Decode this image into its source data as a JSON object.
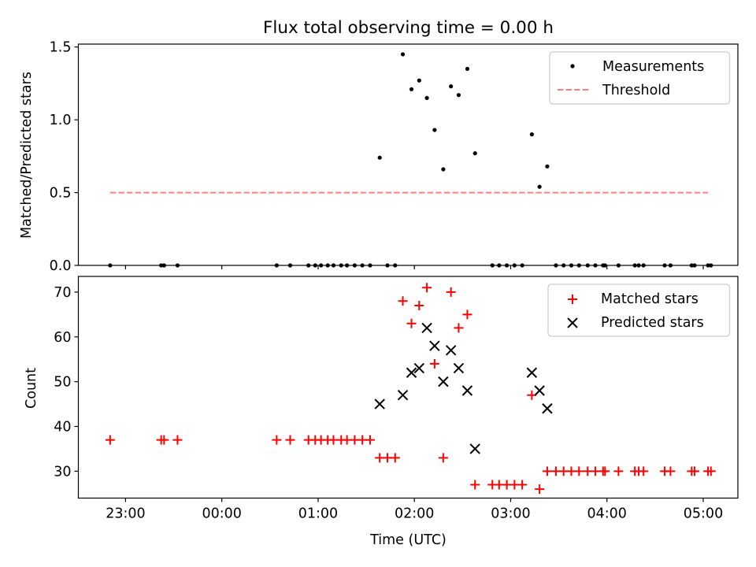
{
  "chart_data": {
    "title": "Flux total observing time = 0.00 h",
    "xlabel": "Time (UTC)",
    "x_unit": "hours UTC (negative = before 00:00; 1.5 = 01:30)",
    "xticks": [
      {
        "value": -1,
        "label": "23:00"
      },
      {
        "value": 0,
        "label": "00:00"
      },
      {
        "value": 1,
        "label": "01:00"
      },
      {
        "value": 2,
        "label": "02:00"
      },
      {
        "value": 3,
        "label": "03:00"
      },
      {
        "value": 4,
        "label": "04:00"
      },
      {
        "value": 5,
        "label": "05:00"
      }
    ],
    "xlim": [
      -1.49,
      5.36
    ],
    "panels": [
      {
        "type": "scatter",
        "ylabel": "Matched/Predicted stars",
        "ylim": [
          0,
          1.52
        ],
        "yticks": [
          {
            "value": 0,
            "label": "0.0"
          },
          {
            "value": 0.5,
            "label": "0.5"
          },
          {
            "value": 1.0,
            "label": "1.0"
          },
          {
            "value": 1.5,
            "label": "1.5"
          }
        ],
        "legend": {
          "position": "top-right"
        },
        "series": [
          {
            "name": "Measurements",
            "marker": "dot",
            "color": "#000000",
            "x": [
              -1.16,
              -0.63,
              -0.6,
              -0.46,
              0.57,
              0.71,
              0.9,
              0.97,
              1.03,
              1.1,
              1.16,
              1.24,
              1.3,
              1.38,
              1.46,
              1.54,
              1.64,
              1.72,
              1.8,
              1.88,
              1.97,
              2.05,
              2.13,
              2.21,
              2.3,
              2.38,
              2.46,
              2.55,
              2.63,
              2.81,
              2.88,
              2.96,
              3.04,
              3.12,
              3.22,
              3.3,
              3.38,
              3.47,
              3.55,
              3.63,
              3.71,
              3.8,
              3.88,
              3.96,
              3.98,
              4.12,
              4.29,
              4.33,
              4.38,
              4.6,
              4.66,
              4.88,
              4.91,
              5.05,
              5.08
            ],
            "y": [
              0,
              0,
              0,
              0,
              0,
              0,
              0,
              0,
              0,
              0,
              0,
              0,
              0,
              0,
              0,
              0,
              0.74,
              0,
              0,
              1.45,
              1.21,
              1.27,
              1.15,
              0.93,
              0.66,
              1.23,
              1.17,
              1.35,
              0.77,
              0,
              0,
              0,
              0,
              0,
              0.9,
              0.54,
              0.68,
              0,
              0,
              0,
              0,
              0,
              0,
              0,
              0,
              0,
              0,
              0,
              0,
              0,
              0,
              0,
              0,
              0,
              0
            ]
          },
          {
            "name": "Threshold",
            "marker": "dashed-line",
            "color": "#ff7f7f",
            "x": [
              -1.16,
              5.05
            ],
            "y": [
              0.5,
              0.5
            ]
          }
        ]
      },
      {
        "type": "scatter",
        "ylabel": "Count",
        "ylim": [
          24,
          73.5
        ],
        "yticks": [
          {
            "value": 30,
            "label": "30"
          },
          {
            "value": 40,
            "label": "40"
          },
          {
            "value": 50,
            "label": "50"
          },
          {
            "value": 60,
            "label": "60"
          },
          {
            "value": 70,
            "label": "70"
          }
        ],
        "legend": {
          "position": "top-right"
        },
        "series": [
          {
            "name": "Matched stars",
            "marker": "plus",
            "color": "#ff0000",
            "x": [
              -1.16,
              -0.63,
              -0.6,
              -0.46,
              0.57,
              0.71,
              0.9,
              0.97,
              1.03,
              1.1,
              1.16,
              1.24,
              1.3,
              1.38,
              1.46,
              1.54,
              1.64,
              1.72,
              1.8,
              1.88,
              1.97,
              2.05,
              2.13,
              2.21,
              2.3,
              2.38,
              2.46,
              2.55,
              2.63,
              2.81,
              2.88,
              2.96,
              3.04,
              3.12,
              3.22,
              3.3,
              3.38,
              3.47,
              3.55,
              3.63,
              3.71,
              3.8,
              3.88,
              3.96,
              3.98,
              4.12,
              4.29,
              4.33,
              4.38,
              4.6,
              4.66,
              4.88,
              4.91,
              5.05,
              5.08
            ],
            "y": [
              37,
              37,
              37,
              37,
              37,
              37,
              37,
              37,
              37,
              37,
              37,
              37,
              37,
              37,
              37,
              37,
              33,
              33,
              33,
              68,
              63,
              67,
              71,
              54,
              33,
              70,
              62,
              65,
              27,
              27,
              27,
              27,
              27,
              27,
              47,
              26,
              30,
              30,
              30,
              30,
              30,
              30,
              30,
              30,
              30,
              30,
              30,
              30,
              30,
              30,
              30,
              30,
              30,
              30,
              30
            ]
          },
          {
            "name": "Predicted stars",
            "marker": "x",
            "color": "#000000",
            "x": [
              1.64,
              1.88,
              1.97,
              2.05,
              2.13,
              2.21,
              2.3,
              2.38,
              2.46,
              2.55,
              2.63,
              3.22,
              3.3,
              3.38
            ],
            "y": [
              45,
              47,
              52,
              53,
              62,
              58,
              50,
              57,
              53,
              48,
              35,
              52,
              48,
              44
            ]
          }
        ]
      }
    ]
  }
}
